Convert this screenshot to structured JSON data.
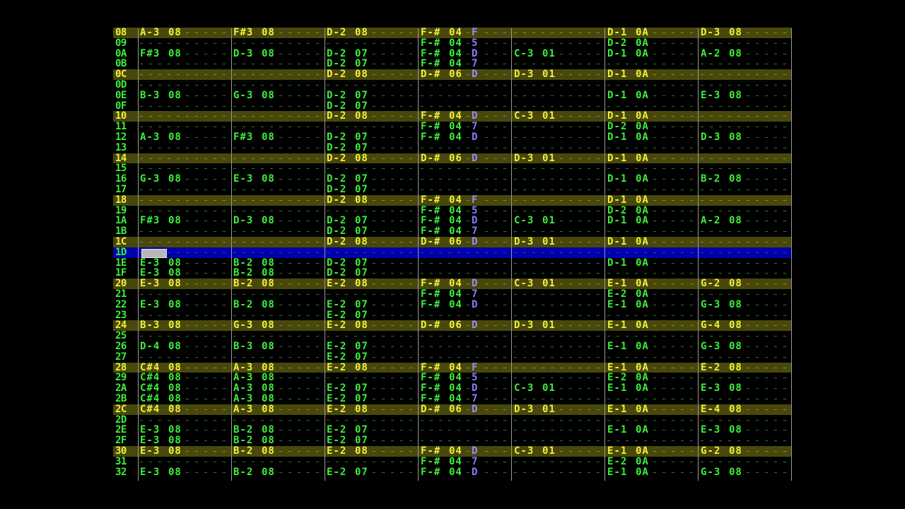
{
  "rows": [
    {
      "num": "08",
      "cells": [
        [
          "A-3",
          "08"
        ],
        [
          "F#3",
          "08"
        ],
        [
          "D-2",
          "08"
        ],
        [
          "F-#",
          "04",
          "F"
        ],
        null,
        [
          "D-1",
          "0A"
        ],
        [
          "D-3",
          "08"
        ]
      ]
    },
    {
      "num": "09",
      "cells": [
        null,
        null,
        null,
        [
          "F-#",
          "04",
          "5"
        ],
        null,
        [
          "D-2",
          "0A"
        ],
        null
      ]
    },
    {
      "num": "0A",
      "cells": [
        [
          "F#3",
          "08"
        ],
        [
          "D-3",
          "08"
        ],
        [
          "D-2",
          "07"
        ],
        [
          "F-#",
          "04",
          "D"
        ],
        [
          "C-3",
          "01"
        ],
        [
          "D-1",
          "0A"
        ],
        [
          "A-2",
          "08"
        ]
      ]
    },
    {
      "num": "0B",
      "cells": [
        null,
        null,
        [
          "D-2",
          "07"
        ],
        [
          "F-#",
          "04",
          "7"
        ],
        null,
        null,
        null
      ]
    },
    {
      "num": "0C",
      "cells": [
        null,
        null,
        [
          "D-2",
          "08"
        ],
        [
          "D-#",
          "06",
          "D"
        ],
        [
          "D-3",
          "01"
        ],
        [
          "D-1",
          "0A"
        ],
        null
      ]
    },
    {
      "num": "0D",
      "cells": [
        null,
        null,
        null,
        null,
        null,
        null,
        null
      ]
    },
    {
      "num": "0E",
      "cells": [
        [
          "B-3",
          "08"
        ],
        [
          "G-3",
          "08"
        ],
        [
          "D-2",
          "07"
        ],
        null,
        null,
        [
          "D-1",
          "0A"
        ],
        [
          "E-3",
          "08"
        ]
      ]
    },
    {
      "num": "0F",
      "cells": [
        null,
        null,
        [
          "D-2",
          "07"
        ],
        null,
        null,
        null,
        null
      ]
    },
    {
      "num": "10",
      "cells": [
        null,
        null,
        [
          "D-2",
          "08"
        ],
        [
          "F-#",
          "04",
          "D"
        ],
        [
          "C-3",
          "01"
        ],
        [
          "D-1",
          "0A"
        ],
        null
      ]
    },
    {
      "num": "11",
      "cells": [
        null,
        null,
        null,
        [
          "F-#",
          "04",
          "7"
        ],
        null,
        [
          "D-2",
          "0A"
        ],
        null
      ]
    },
    {
      "num": "12",
      "cells": [
        [
          "A-3",
          "08"
        ],
        [
          "F#3",
          "08"
        ],
        [
          "D-2",
          "07"
        ],
        [
          "F-#",
          "04",
          "D"
        ],
        null,
        [
          "D-1",
          "0A"
        ],
        [
          "D-3",
          "08"
        ]
      ]
    },
    {
      "num": "13",
      "cells": [
        null,
        null,
        [
          "D-2",
          "07"
        ],
        null,
        null,
        null,
        null
      ]
    },
    {
      "num": "14",
      "cells": [
        null,
        null,
        [
          "D-2",
          "08"
        ],
        [
          "D-#",
          "06",
          "D"
        ],
        [
          "D-3",
          "01"
        ],
        [
          "D-1",
          "0A"
        ],
        null
      ]
    },
    {
      "num": "15",
      "cells": [
        null,
        null,
        null,
        null,
        null,
        null,
        null
      ]
    },
    {
      "num": "16",
      "cells": [
        [
          "G-3",
          "08"
        ],
        [
          "E-3",
          "08"
        ],
        [
          "D-2",
          "07"
        ],
        null,
        null,
        [
          "D-1",
          "0A"
        ],
        [
          "B-2",
          "08"
        ]
      ]
    },
    {
      "num": "17",
      "cells": [
        null,
        null,
        [
          "D-2",
          "07"
        ],
        null,
        null,
        null,
        null
      ]
    },
    {
      "num": "18",
      "cells": [
        null,
        null,
        [
          "D-2",
          "08"
        ],
        [
          "F-#",
          "04",
          "F"
        ],
        null,
        [
          "D-1",
          "0A"
        ],
        null
      ]
    },
    {
      "num": "19",
      "cells": [
        null,
        null,
        null,
        [
          "F-#",
          "04",
          "5"
        ],
        null,
        [
          "D-2",
          "0A"
        ],
        null
      ]
    },
    {
      "num": "1A",
      "cells": [
        [
          "F#3",
          "08"
        ],
        [
          "D-3",
          "08"
        ],
        [
          "D-2",
          "07"
        ],
        [
          "F-#",
          "04",
          "D"
        ],
        [
          "C-3",
          "01"
        ],
        [
          "D-1",
          "0A"
        ],
        [
          "A-2",
          "08"
        ]
      ]
    },
    {
      "num": "1B",
      "cells": [
        null,
        null,
        [
          "D-2",
          "07"
        ],
        [
          "F-#",
          "04",
          "7"
        ],
        null,
        null,
        null
      ]
    },
    {
      "num": "1C",
      "cells": [
        null,
        null,
        [
          "D-2",
          "08"
        ],
        [
          "D-#",
          "06",
          "D"
        ],
        [
          "D-3",
          "01"
        ],
        [
          "D-1",
          "0A"
        ],
        null
      ]
    },
    {
      "num": "1D",
      "cells": [
        null,
        null,
        null,
        null,
        null,
        null,
        null
      ]
    },
    {
      "num": "1E",
      "cells": [
        [
          "E-3",
          "08"
        ],
        [
          "B-2",
          "08"
        ],
        [
          "D-2",
          "07"
        ],
        null,
        null,
        [
          "D-1",
          "0A"
        ],
        null
      ]
    },
    {
      "num": "1F",
      "cells": [
        [
          "E-3",
          "08"
        ],
        [
          "B-2",
          "08"
        ],
        [
          "D-2",
          "07"
        ],
        null,
        null,
        null,
        null
      ]
    },
    {
      "num": "20",
      "cells": [
        [
          "E-3",
          "08"
        ],
        [
          "B-2",
          "08"
        ],
        [
          "E-2",
          "08"
        ],
        [
          "F-#",
          "04",
          "D"
        ],
        [
          "C-3",
          "01"
        ],
        [
          "E-1",
          "0A"
        ],
        [
          "G-2",
          "08"
        ]
      ]
    },
    {
      "num": "21",
      "cells": [
        null,
        null,
        null,
        [
          "F-#",
          "04",
          "7"
        ],
        null,
        [
          "E-2",
          "0A"
        ],
        null
      ]
    },
    {
      "num": "22",
      "cells": [
        [
          "E-3",
          "08"
        ],
        [
          "B-2",
          "08"
        ],
        [
          "E-2",
          "07"
        ],
        [
          "F-#",
          "04",
          "D"
        ],
        null,
        [
          "E-1",
          "0A"
        ],
        [
          "G-3",
          "08"
        ]
      ]
    },
    {
      "num": "23",
      "cells": [
        null,
        null,
        [
          "E-2",
          "07"
        ],
        null,
        null,
        null,
        null
      ]
    },
    {
      "num": "24",
      "cells": [
        [
          "B-3",
          "08"
        ],
        [
          "G-3",
          "08"
        ],
        [
          "E-2",
          "08"
        ],
        [
          "D-#",
          "06",
          "D"
        ],
        [
          "D-3",
          "01"
        ],
        [
          "E-1",
          "0A"
        ],
        [
          "G-4",
          "08"
        ]
      ]
    },
    {
      "num": "25",
      "cells": [
        null,
        null,
        null,
        null,
        null,
        null,
        null
      ]
    },
    {
      "num": "26",
      "cells": [
        [
          "D-4",
          "08"
        ],
        [
          "B-3",
          "08"
        ],
        [
          "E-2",
          "07"
        ],
        null,
        null,
        [
          "E-1",
          "0A"
        ],
        [
          "G-3",
          "08"
        ]
      ]
    },
    {
      "num": "27",
      "cells": [
        null,
        null,
        [
          "E-2",
          "07"
        ],
        null,
        null,
        null,
        null
      ]
    },
    {
      "num": "28",
      "cells": [
        [
          "C#4",
          "08"
        ],
        [
          "A-3",
          "08"
        ],
        [
          "E-2",
          "08"
        ],
        [
          "F-#",
          "04",
          "F"
        ],
        null,
        [
          "E-1",
          "0A"
        ],
        [
          "E-2",
          "08"
        ]
      ]
    },
    {
      "num": "29",
      "cells": [
        [
          "C#4",
          "08"
        ],
        [
          "A-3",
          "08"
        ],
        null,
        [
          "F-#",
          "04",
          "5"
        ],
        null,
        [
          "E-2",
          "0A"
        ],
        null
      ]
    },
    {
      "num": "2A",
      "cells": [
        [
          "C#4",
          "08"
        ],
        [
          "A-3",
          "08"
        ],
        [
          "E-2",
          "07"
        ],
        [
          "F-#",
          "04",
          "D"
        ],
        [
          "C-3",
          "01"
        ],
        [
          "E-1",
          "0A"
        ],
        [
          "E-3",
          "08"
        ]
      ]
    },
    {
      "num": "2B",
      "cells": [
        [
          "C#4",
          "08"
        ],
        [
          "A-3",
          "08"
        ],
        [
          "E-2",
          "07"
        ],
        [
          "F-#",
          "04",
          "7"
        ],
        null,
        null,
        null
      ]
    },
    {
      "num": "2C",
      "cells": [
        [
          "C#4",
          "08"
        ],
        [
          "A-3",
          "08"
        ],
        [
          "E-2",
          "08"
        ],
        [
          "D-#",
          "06",
          "D"
        ],
        [
          "D-3",
          "01"
        ],
        [
          "E-1",
          "0A"
        ],
        [
          "E-4",
          "08"
        ]
      ]
    },
    {
      "num": "2D",
      "cells": [
        null,
        null,
        null,
        null,
        null,
        null,
        null
      ]
    },
    {
      "num": "2E",
      "cells": [
        [
          "E-3",
          "08"
        ],
        [
          "B-2",
          "08"
        ],
        [
          "E-2",
          "07"
        ],
        null,
        null,
        [
          "E-1",
          "0A"
        ],
        [
          "E-3",
          "08"
        ]
      ]
    },
    {
      "num": "2F",
      "cells": [
        [
          "E-3",
          "08"
        ],
        [
          "B-2",
          "08"
        ],
        [
          "E-2",
          "07"
        ],
        null,
        null,
        null,
        null
      ]
    },
    {
      "num": "30",
      "cells": [
        [
          "E-3",
          "08"
        ],
        [
          "B-2",
          "08"
        ],
        [
          "E-2",
          "08"
        ],
        [
          "F-#",
          "04",
          "D"
        ],
        [
          "C-3",
          "01"
        ],
        [
          "E-1",
          "0A"
        ],
        [
          "G-2",
          "08"
        ]
      ]
    },
    {
      "num": "31",
      "cells": [
        null,
        null,
        null,
        [
          "F-#",
          "04",
          "7"
        ],
        null,
        [
          "E-2",
          "0A"
        ],
        null
      ]
    },
    {
      "num": "32",
      "cells": [
        [
          "E-3",
          "08"
        ],
        [
          "B-2",
          "08"
        ],
        [
          "E-2",
          "07"
        ],
        [
          "F-#",
          "04",
          "D"
        ],
        null,
        [
          "E-1",
          "0A"
        ],
        [
          "G-3",
          "08"
        ]
      ]
    }
  ]
}
